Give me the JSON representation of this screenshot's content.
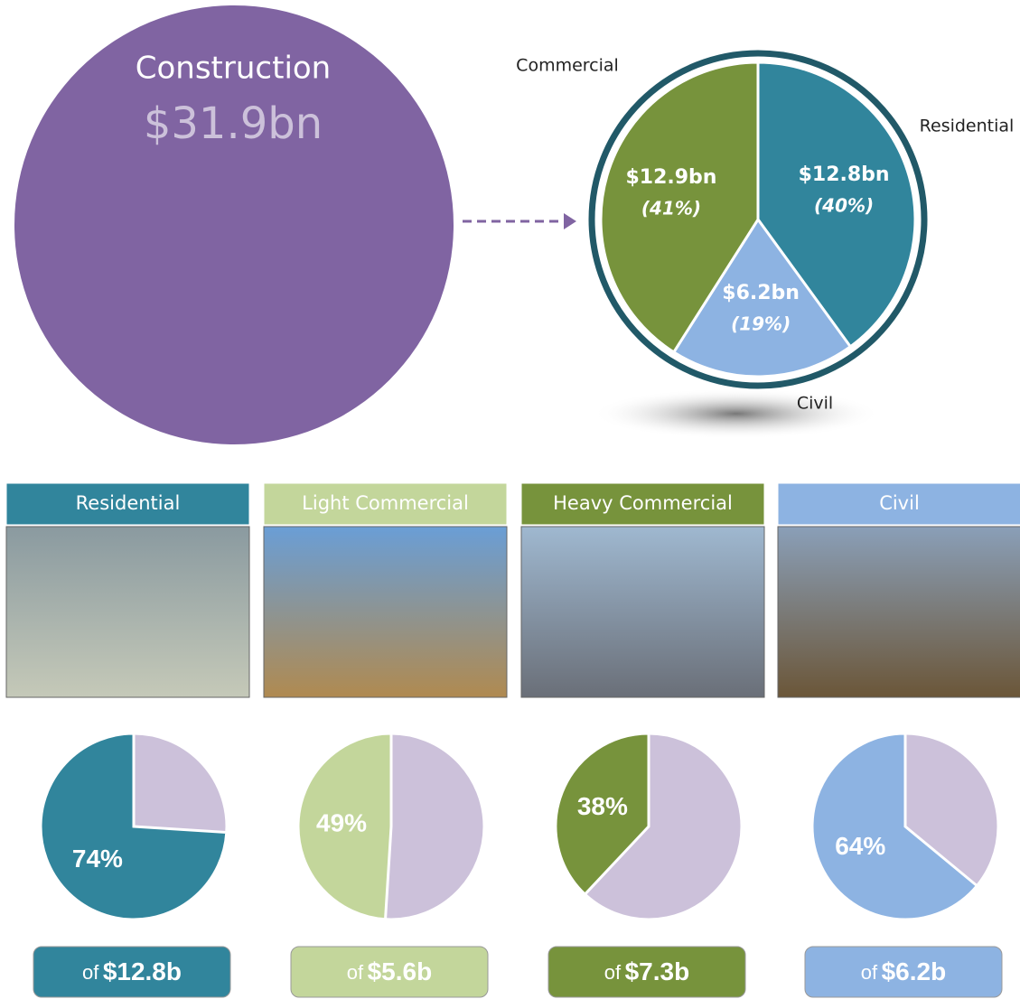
{
  "total": {
    "title": "Construction",
    "label": "$31.9bn"
  },
  "breakdown": {
    "type": "pie",
    "segments": [
      {
        "name": "Residential",
        "value_label": "$12.8bn",
        "share": 40,
        "share_label": "(40%)",
        "color": "#31859c"
      },
      {
        "name": "Civil",
        "value_label": "$6.2bn",
        "share": 19,
        "share_label": "(19%)",
        "color": "#8db3e2"
      },
      {
        "name": "Commercial",
        "value_label": "$12.9bn",
        "share": 41,
        "share_label": "(41%)",
        "color": "#77933c"
      }
    ]
  },
  "sectors": [
    {
      "name": "Residential",
      "share": 74,
      "share_label": "74%",
      "prefix": "of",
      "total_label": "$12.8b",
      "color": "#31859c"
    },
    {
      "name": "Light Commercial",
      "share": 49,
      "share_label": "49%",
      "prefix": "of",
      "total_label": "$5.6b",
      "color": "#c3d69b"
    },
    {
      "name": "Heavy Commercial",
      "share": 38,
      "share_label": "38%",
      "prefix": "of",
      "total_label": "$7.3b",
      "color": "#77933c"
    },
    {
      "name": "Civil",
      "share": 64,
      "share_label": "64%",
      "prefix": "of",
      "total_label": "$6.2b",
      "color": "#8db3e2"
    }
  ]
}
